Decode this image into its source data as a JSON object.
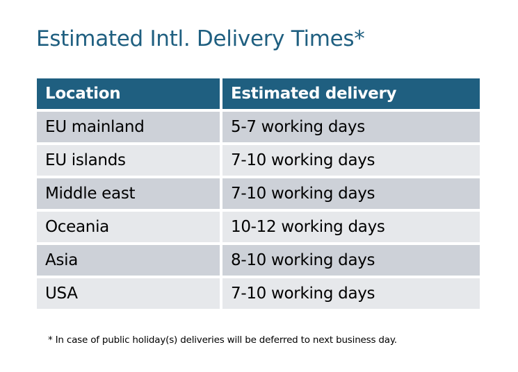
{
  "title": "Estimated Intl. Delivery Times*",
  "table": {
    "headers": [
      "Location",
      "Estimated delivery"
    ],
    "rows": [
      [
        "EU mainland",
        "5-7 working days"
      ],
      [
        "EU islands",
        "7-10 working days"
      ],
      [
        "Middle east",
        "7-10 working days"
      ],
      [
        "Oceania",
        "10-12 working days"
      ],
      [
        "Asia",
        "8-10 working days"
      ],
      [
        "USA",
        "7-10 working days"
      ]
    ]
  },
  "footnote": "* In case of public holiday(s) deliveries will be deferred to next business day.",
  "colors": {
    "header": "#1f5f80",
    "row_dark": "#cdd1d8",
    "row_light": "#e6e8eb",
    "title": "#1f5f80"
  }
}
